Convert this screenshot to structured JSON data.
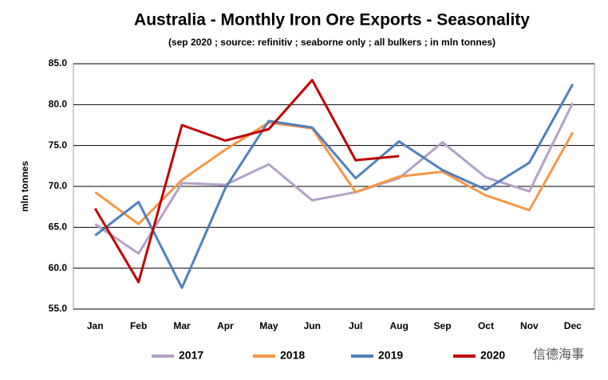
{
  "chart_data": {
    "type": "line",
    "title": "Australia - Monthly Iron Ore Exports - Seasonality",
    "subtitle": "(sep 2020 ; source: refinitiv ; seaborne only ; all bulkers ; in mln tonnes)",
    "y_label": "mln tonnes",
    "watermark": "信德海事",
    "categories": [
      "Jan",
      "Feb",
      "Mar",
      "Apr",
      "May",
      "Jun",
      "Jul",
      "Aug",
      "Sep",
      "Oct",
      "Nov",
      "Dec"
    ],
    "series": [
      {
        "name": "2017",
        "color": "#b3a2c7",
        "values": [
          65.4,
          61.8,
          70.4,
          70.2,
          72.7,
          68.3,
          69.3,
          71.0,
          75.4,
          71.1,
          69.4,
          80.2
        ]
      },
      {
        "name": "2018",
        "color": "#f79646",
        "values": [
          69.3,
          65.4,
          70.8,
          74.5,
          77.8,
          77.1,
          69.3,
          71.2,
          71.8,
          68.9,
          67.1,
          76.6
        ]
      },
      {
        "name": "2019",
        "color": "#4f81bd",
        "values": [
          64.0,
          68.1,
          57.6,
          69.8,
          78.0,
          77.2,
          71.0,
          75.5,
          72.0,
          69.6,
          72.9,
          82.5
        ]
      },
      {
        "name": "2020",
        "color": "#c00000",
        "values": [
          67.3,
          58.3,
          77.5,
          75.6,
          77.0,
          83.0,
          73.2,
          73.7,
          null,
          null,
          null,
          null
        ]
      }
    ],
    "ylim": [
      55,
      85
    ],
    "yticks": [
      {
        "value": 55,
        "label": "55.0"
      },
      {
        "value": 60,
        "label": "60.0"
      },
      {
        "value": 65,
        "label": "65.0"
      },
      {
        "value": 70,
        "label": "70.0"
      },
      {
        "value": 75,
        "label": "75.0"
      },
      {
        "value": 80,
        "label": "80.0"
      },
      {
        "value": 85,
        "label": "85.0"
      }
    ],
    "grid": true,
    "legend": "bottom"
  }
}
